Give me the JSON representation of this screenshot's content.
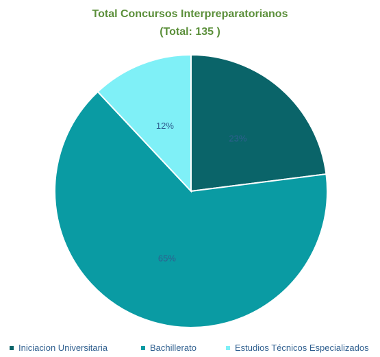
{
  "chart_data": {
    "type": "pie",
    "title": "Total Concursos Interpreparatorianos",
    "subtitle": "(Total: 135 )",
    "categories": [
      "Iniciacion Universitaria",
      "Bachillerato",
      "Estudios Técnicos Especializados"
    ],
    "values": [
      23,
      65,
      12
    ],
    "labels": [
      "23%",
      "65%",
      "12%"
    ],
    "colors": [
      "#0a6469",
      "#0a9ba3",
      "#7ff0f7"
    ],
    "label_colors": [
      "#2f5f8f",
      "#2f5f8f",
      "#2f5f8f"
    ],
    "legend_placement": "bottom",
    "title_color": "#5b8f3a"
  }
}
